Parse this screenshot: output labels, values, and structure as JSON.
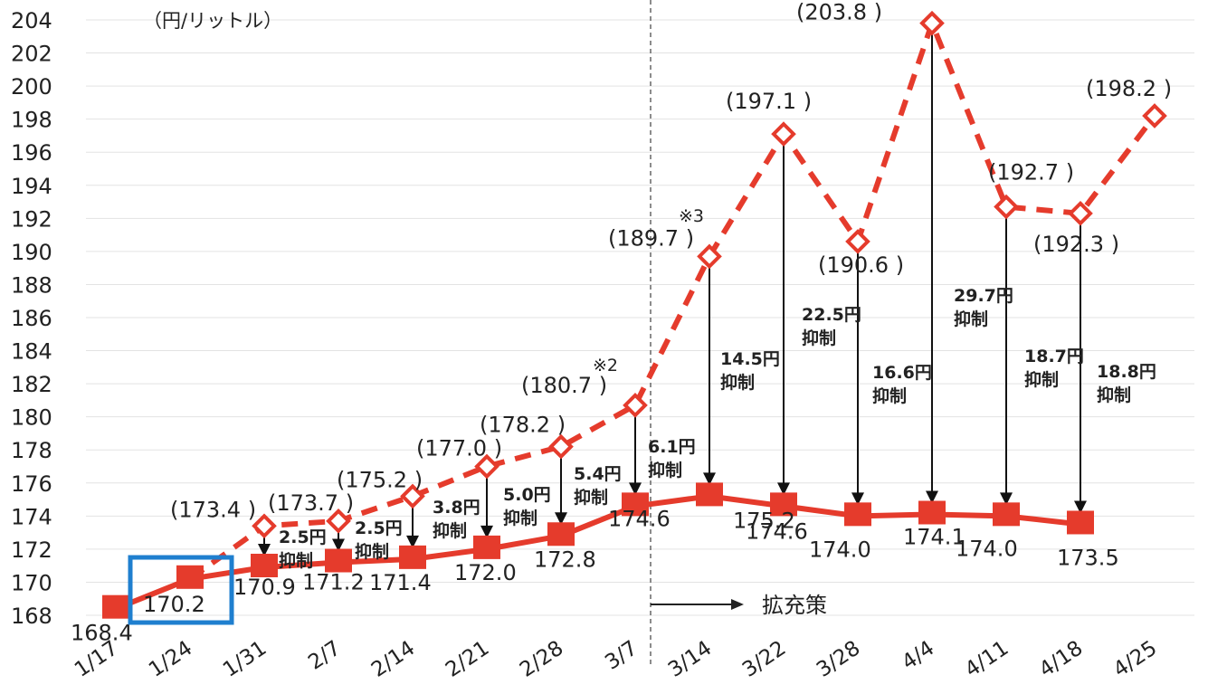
{
  "chart_data": {
    "type": "line",
    "title": "",
    "unit_label": "（円/リットル）",
    "xlabel": "",
    "ylabel": "",
    "ylim": [
      168,
      204
    ],
    "y_ticks": [
      168,
      170,
      172,
      174,
      176,
      178,
      180,
      182,
      184,
      186,
      188,
      190,
      192,
      194,
      196,
      198,
      200,
      202,
      204
    ],
    "categories": [
      "1/17",
      "1/24",
      "1/31",
      "2/7",
      "2/14",
      "2/21",
      "2/28",
      "3/7",
      "3/14",
      "3/22",
      "3/28",
      "4/4",
      "4/11",
      "4/18",
      "4/25"
    ],
    "grid": true,
    "series": [
      {
        "style": "solid-square",
        "color": "#e53b2c",
        "values": [
          168.4,
          170.2,
          170.9,
          171.2,
          171.4,
          172.0,
          172.8,
          174.6,
          175.2,
          174.6,
          174.0,
          174.1,
          174.0,
          173.5,
          null
        ],
        "labels": [
          "168.4",
          "170.2",
          "170.9",
          "171.2",
          "171.4",
          "172.0",
          "172.8",
          "174.6",
          "175.2",
          "174.6",
          "174.0",
          "174.1",
          "174.0",
          "173.5",
          ""
        ]
      },
      {
        "style": "dashed-diamond",
        "color": "#e53b2c",
        "values": [
          null,
          170.2,
          173.4,
          173.7,
          175.2,
          177.0,
          178.2,
          180.7,
          189.7,
          197.1,
          190.6,
          203.8,
          192.7,
          192.3,
          198.2
        ],
        "labels": [
          "",
          "",
          "(173.4 )",
          "(173.7 )",
          "(175.2 )",
          "(177.0 )",
          "(178.2 )",
          "(180.7 )",
          "(189.7 )",
          "(197.1 )",
          "(190.6 )",
          "(203.8 )",
          "(192.7 )",
          "(192.3 )",
          "(198.2 )"
        ]
      }
    ],
    "suppression": [
      {
        "category": "1/31",
        "amount": "2.5円",
        "text": "抑制"
      },
      {
        "category": "2/7",
        "amount": "2.5円",
        "text": "抑制"
      },
      {
        "category": "2/14",
        "amount": "3.8円",
        "text": "抑制"
      },
      {
        "category": "2/21",
        "amount": "5.0円",
        "text": "抑制"
      },
      {
        "category": "2/28",
        "amount": "5.4円",
        "text": "抑制"
      },
      {
        "category": "3/7",
        "amount": "6.1円",
        "text": "抑制"
      },
      {
        "category": "3/14",
        "amount": "14.5円",
        "text": "抑制"
      },
      {
        "category": "3/22",
        "amount": "22.5円",
        "text": "抑制"
      },
      {
        "category": "3/28",
        "amount": "16.6円",
        "text": "抑制"
      },
      {
        "category": "4/4",
        "amount": "29.7円",
        "text": "抑制"
      },
      {
        "category": "4/11",
        "amount": "18.7円",
        "text": "抑制"
      },
      {
        "category": "4/18",
        "amount": "18.8円",
        "text": "抑制"
      }
    ],
    "notes": [
      {
        "category": "3/7",
        "text": "※2"
      },
      {
        "category": "3/14",
        "text": "※3"
      }
    ],
    "divider_label": "拡充策",
    "highlight_category": "1/24",
    "highlight_color": "#1f7fcf"
  }
}
